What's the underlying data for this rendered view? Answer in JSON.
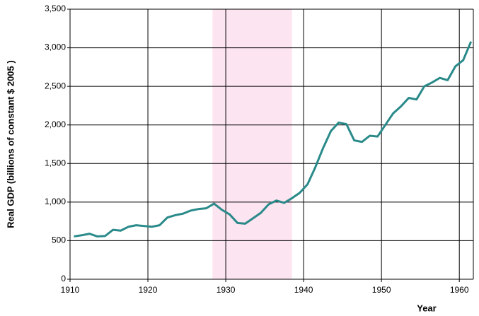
{
  "chart_data": {
    "type": "line",
    "y_label": "Real GDP (billions of constant $ 2005 )",
    "x_label": "Year",
    "x": [
      1910.5,
      1911.5,
      1912.5,
      1913.5,
      1914.5,
      1915.5,
      1916.5,
      1917.5,
      1918.5,
      1919.5,
      1920.5,
      1921.5,
      1922.5,
      1923.5,
      1924.5,
      1925.5,
      1926.5,
      1927.5,
      1928.5,
      1929.5,
      1930.5,
      1931.5,
      1932.5,
      1933.5,
      1934.5,
      1935.5,
      1936.5,
      1937.5,
      1938.5,
      1939.5,
      1940.5,
      1941.5,
      1942.5,
      1943.5,
      1944.5,
      1945.5,
      1946.5,
      1947.5,
      1948.5,
      1949.5,
      1950.5,
      1951.5,
      1952.5,
      1953.5,
      1954.5,
      1955.5,
      1956.5,
      1957.5,
      1958.5,
      1959.5,
      1960.5,
      1961.5
    ],
    "series": [
      {
        "color": "#2a8a8a",
        "values": [
          555,
          570,
          590,
          555,
          560,
          640,
          630,
          680,
          700,
          690,
          680,
          700,
          800,
          830,
          850,
          890,
          910,
          920,
          980,
          900,
          840,
          730,
          720,
          790,
          860,
          970,
          1020,
          990,
          1050,
          1120,
          1230,
          1450,
          1700,
          1920,
          2030,
          2010,
          1800,
          1780,
          1860,
          1850,
          2000,
          2150,
          2240,
          2350,
          2330,
          2500,
          2550,
          2610,
          2580,
          2760,
          2840,
          3080
        ]
      }
    ],
    "highlight": {
      "x": [
        1928.3,
        1938.5
      ],
      "color": "#fce4f0"
    },
    "xlim": [
      1910,
      1961.8
    ],
    "xticks": [
      1910,
      1920,
      1930,
      1940,
      1950,
      1960
    ],
    "ylim": [
      0,
      3500
    ],
    "yticks": [
      0,
      500,
      {
        "value": 1000,
        "label": "1,000"
      },
      {
        "value": 1500,
        "label": "1,500"
      },
      {
        "value": 2000,
        "label": "2,000"
      },
      {
        "value": 2500,
        "label": "2,500"
      },
      {
        "value": 3000,
        "label": "3,000"
      },
      {
        "value": 3500,
        "label": "3,500"
      }
    ],
    "grid": true
  }
}
